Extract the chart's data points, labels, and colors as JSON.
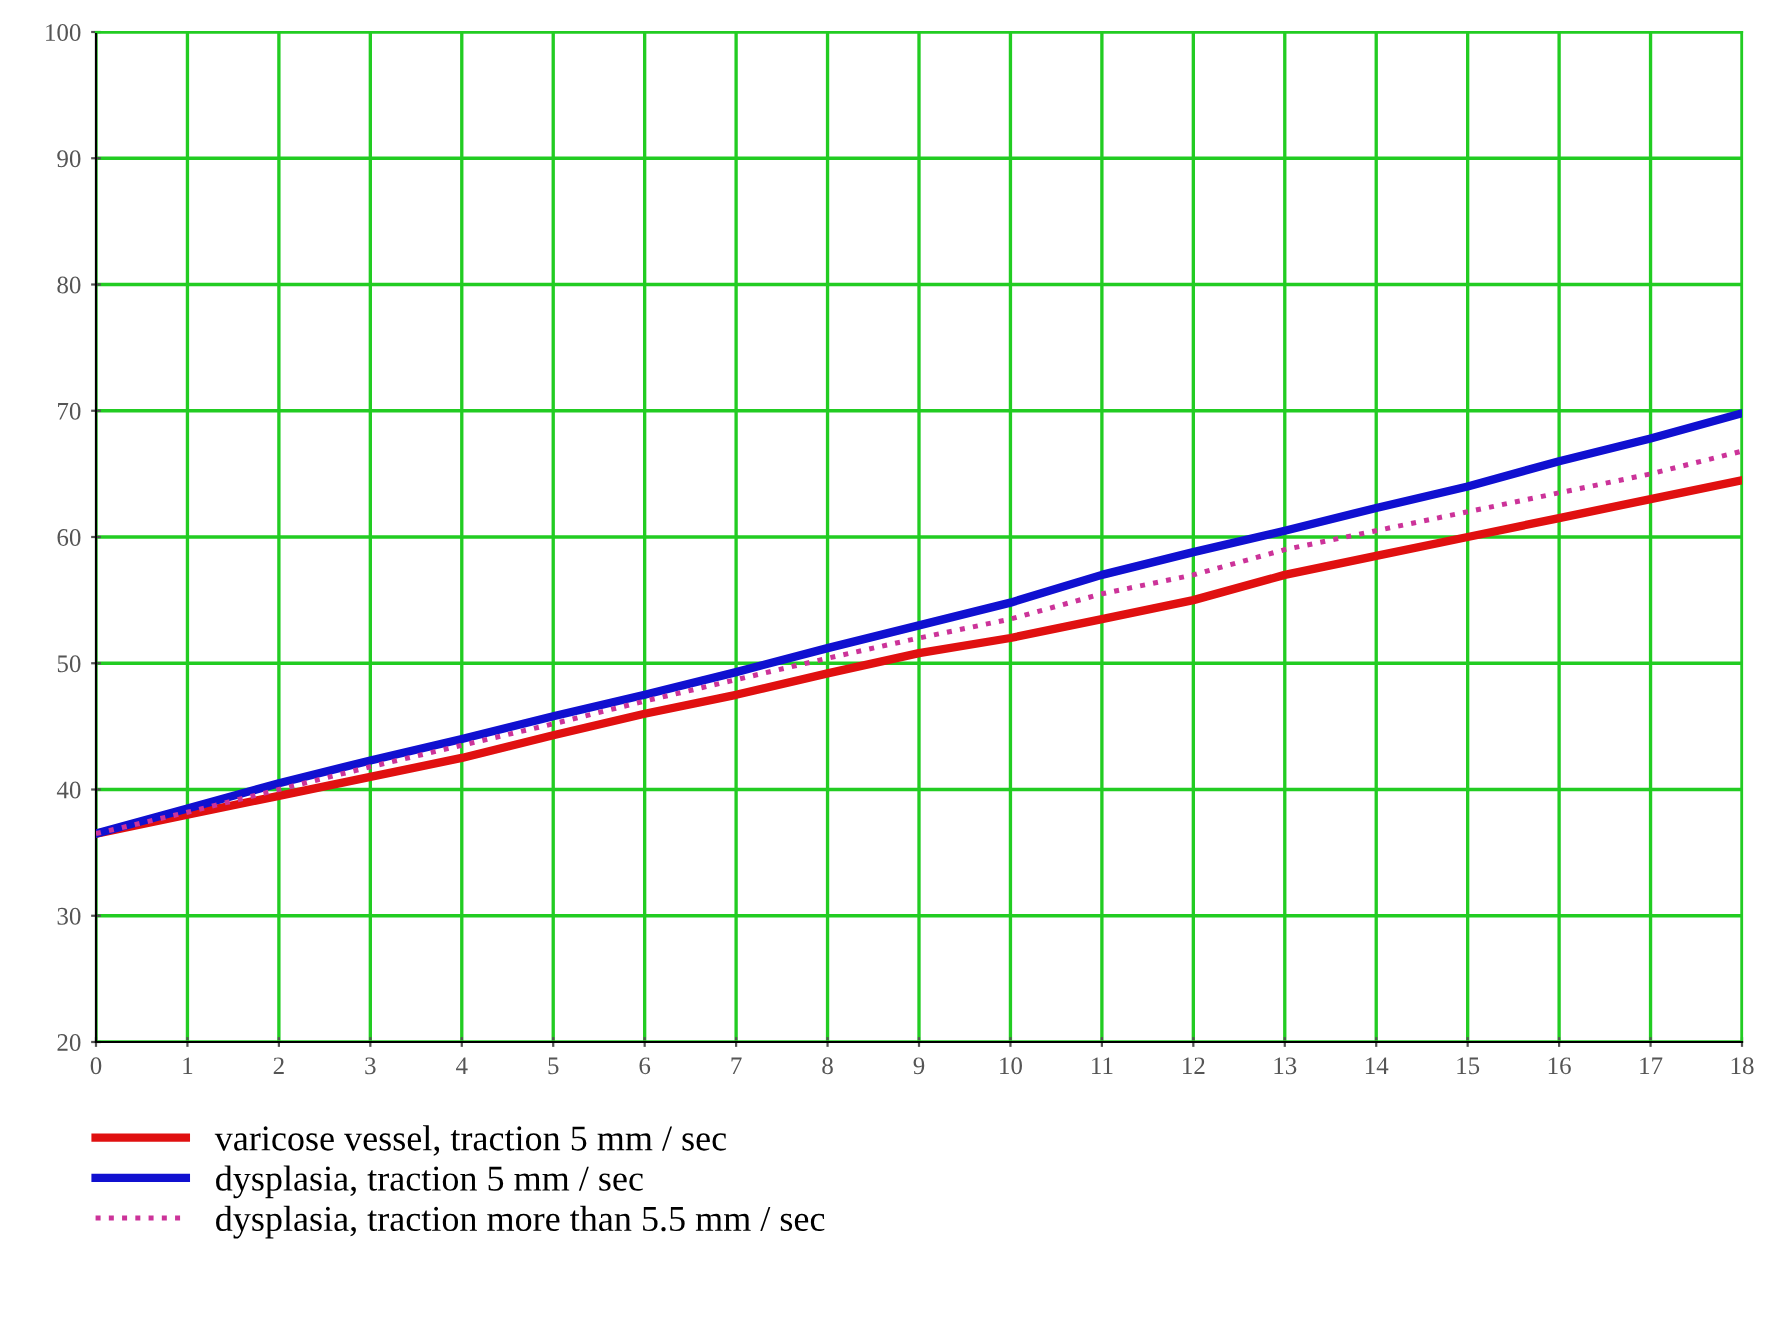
{
  "chart_data": {
    "type": "line",
    "x": [
      0,
      1,
      2,
      3,
      4,
      5,
      6,
      7,
      8,
      9,
      10,
      11,
      12,
      13,
      14,
      15,
      16,
      17,
      18
    ],
    "series": [
      {
        "name": "varicose vessel, traction 5 mm / sec",
        "color": "#e01010",
        "line_style": "solid",
        "values": [
          36.5,
          38,
          39.5,
          41,
          42.5,
          44.3,
          46,
          47.5,
          49.2,
          50.8,
          52,
          53.5,
          55,
          57,
          58.5,
          60,
          61.5,
          63,
          64.5
        ]
      },
      {
        "name": "dysplasia, traction 5 mm / sec",
        "color": "#1010d0",
        "line_style": "solid",
        "values": [
          36.5,
          38.5,
          40.5,
          42.3,
          44,
          45.8,
          47.5,
          49.3,
          51.2,
          53,
          54.8,
          57,
          58.8,
          60.5,
          62.3,
          64,
          66,
          67.8,
          69.8
        ]
      },
      {
        "name": "dysplasia, traction more than 5.5 mm / sec",
        "color": "#cc3399",
        "line_style": "dotted",
        "values": [
          36.5,
          38.2,
          40,
          41.8,
          43.5,
          45.2,
          47,
          48.7,
          50.4,
          52,
          53.5,
          55.5,
          57,
          59,
          60.5,
          62,
          63.5,
          65,
          66.8
        ]
      }
    ],
    "xlim": [
      0,
      18
    ],
    "xticks": [
      0,
      1,
      2,
      3,
      4,
      5,
      6,
      7,
      8,
      9,
      10,
      11,
      12,
      13,
      14,
      15,
      16,
      17,
      18
    ],
    "ylim": [
      20,
      100
    ],
    "yticks": [
      20,
      30,
      40,
      50,
      60,
      70,
      80,
      90,
      100
    ],
    "grid": true,
    "legend": "bottom",
    "marker": "none"
  }
}
